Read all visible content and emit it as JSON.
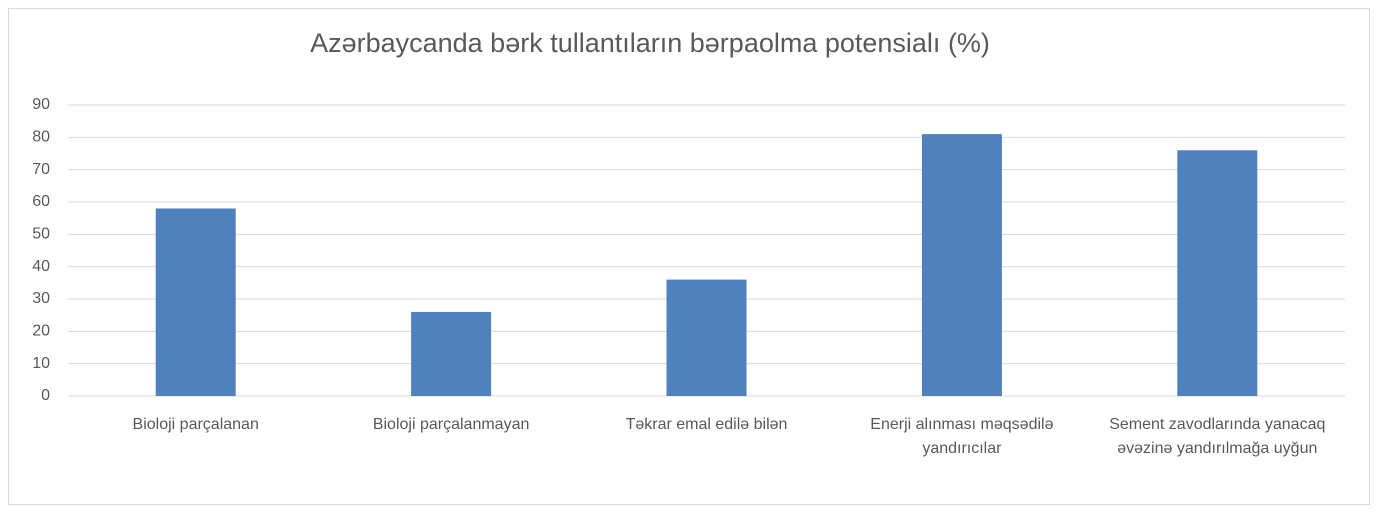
{
  "chart_data": {
    "type": "bar",
    "title": "Azərbaycanda bərk tullantıların bərpaolma potensialı (%)",
    "categories": [
      "Bioloji parçalanan",
      "Bioloji parçalanmayan",
      "Təkrar emal edilə bilən",
      "Enerji alınması məqsədilə yandırıcılar",
      "Sement zavodlarında yanacaq əvəzinə yandırılmağa uyğun"
    ],
    "values": [
      58,
      26,
      36,
      81,
      76
    ],
    "color": "#4f81bd",
    "ylim": [
      0,
      90
    ],
    "yticks": [
      0,
      10,
      20,
      30,
      40,
      50,
      60,
      70,
      80,
      90
    ],
    "grid": true
  }
}
